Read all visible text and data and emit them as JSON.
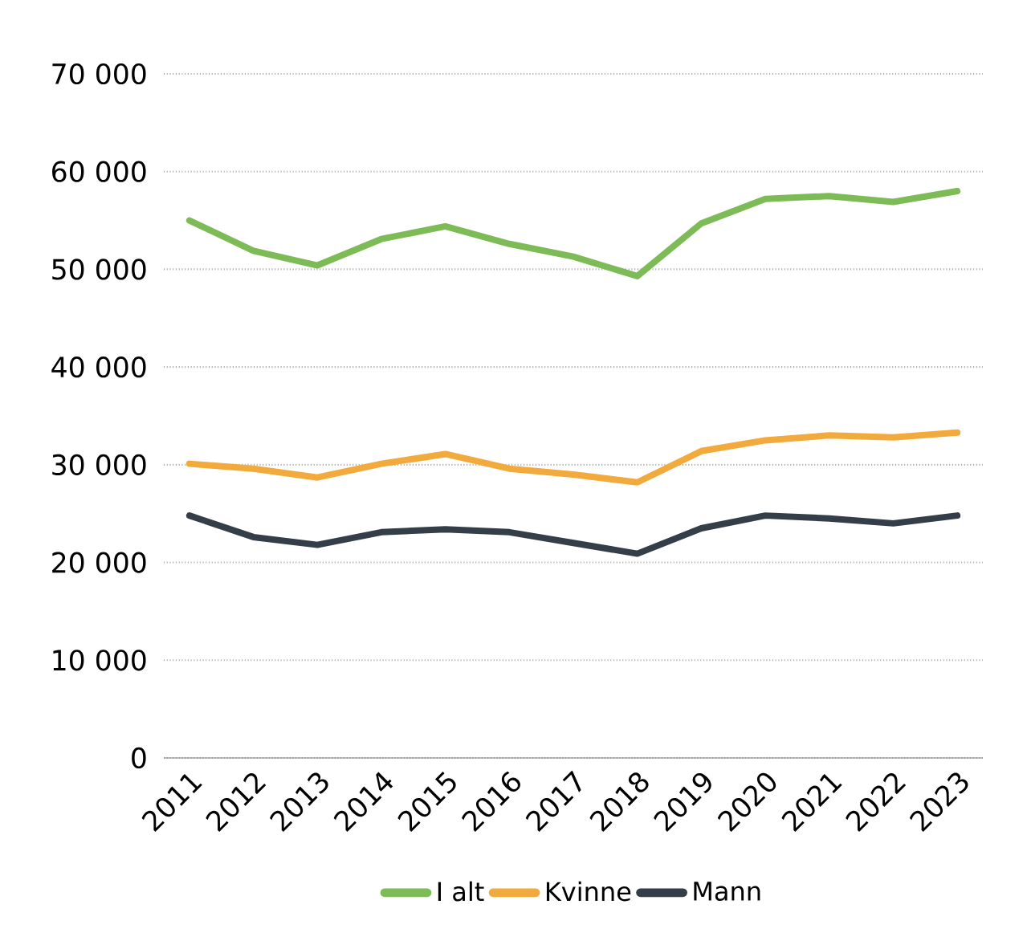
{
  "chart_data": {
    "type": "line",
    "categories": [
      "2011",
      "2012",
      "2013",
      "2014",
      "2015",
      "2016",
      "2017",
      "2018",
      "2019",
      "2020",
      "2021",
      "2022",
      "2023"
    ],
    "series": [
      {
        "name": "I alt",
        "color": "#7dbb57",
        "values": [
          55000,
          51900,
          50400,
          53100,
          54400,
          52600,
          51300,
          49300,
          54700,
          57200,
          57500,
          56900,
          58000
        ]
      },
      {
        "name": "Kvinne",
        "color": "#f2aa3c",
        "values": [
          30100,
          29600,
          28700,
          30100,
          31100,
          29600,
          29000,
          28200,
          31400,
          32500,
          33000,
          32800,
          33300
        ]
      },
      {
        "name": "Mann",
        "color": "#333e48",
        "values": [
          24800,
          22600,
          21800,
          23100,
          23400,
          23100,
          22000,
          20900,
          23500,
          24800,
          24500,
          24000,
          24800
        ]
      }
    ],
    "ylim": [
      0,
      70000
    ],
    "yticks": [
      {
        "value": 0,
        "label": "0"
      },
      {
        "value": 10000,
        "label": "10 000"
      },
      {
        "value": 20000,
        "label": "20 000"
      },
      {
        "value": 30000,
        "label": "30 000"
      },
      {
        "value": 40000,
        "label": "40 000"
      },
      {
        "value": 50000,
        "label": "50 000"
      },
      {
        "value": 60000,
        "label": "60 000"
      },
      {
        "value": 70000,
        "label": "70 000"
      }
    ],
    "grid": "y",
    "legend": "bottom",
    "marker": "none",
    "line_style": "solid"
  }
}
